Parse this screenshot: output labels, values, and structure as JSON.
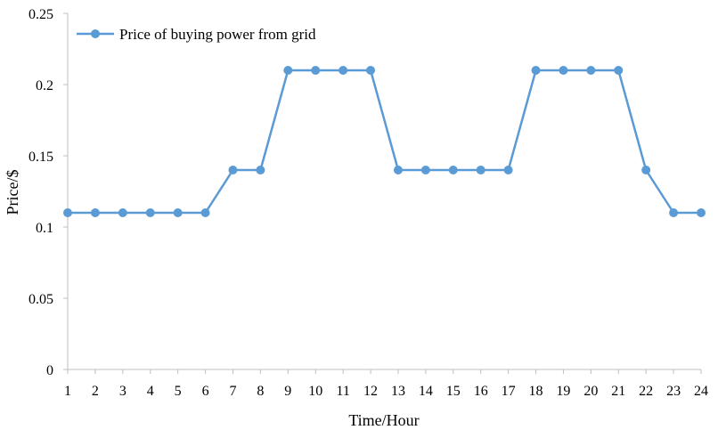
{
  "chart_data": {
    "type": "line",
    "title": "",
    "xlabel": "Time/Hour",
    "ylabel": "Price/$",
    "categories": [
      "1",
      "2",
      "3",
      "4",
      "5",
      "6",
      "7",
      "8",
      "9",
      "10",
      "11",
      "12",
      "13",
      "14",
      "15",
      "16",
      "17",
      "18",
      "19",
      "20",
      "21",
      "22",
      "23",
      "24"
    ],
    "series": [
      {
        "name": "Price of buying power from grid",
        "color": "#5B9BD5",
        "values": [
          0.11,
          0.11,
          0.11,
          0.11,
          0.11,
          0.11,
          0.14,
          0.14,
          0.21,
          0.21,
          0.21,
          0.21,
          0.14,
          0.14,
          0.14,
          0.14,
          0.14,
          0.21,
          0.21,
          0.21,
          0.21,
          0.14,
          0.11,
          0.11
        ]
      }
    ],
    "ylim": [
      0,
      0.25
    ],
    "yticks": [
      "0",
      "0.05",
      "0.1",
      "0.15",
      "0.2",
      "0.25"
    ],
    "ytick_values": [
      0,
      0.05,
      0.1,
      0.15,
      0.2,
      0.25
    ],
    "grid": false,
    "legend_position": "top-left"
  }
}
